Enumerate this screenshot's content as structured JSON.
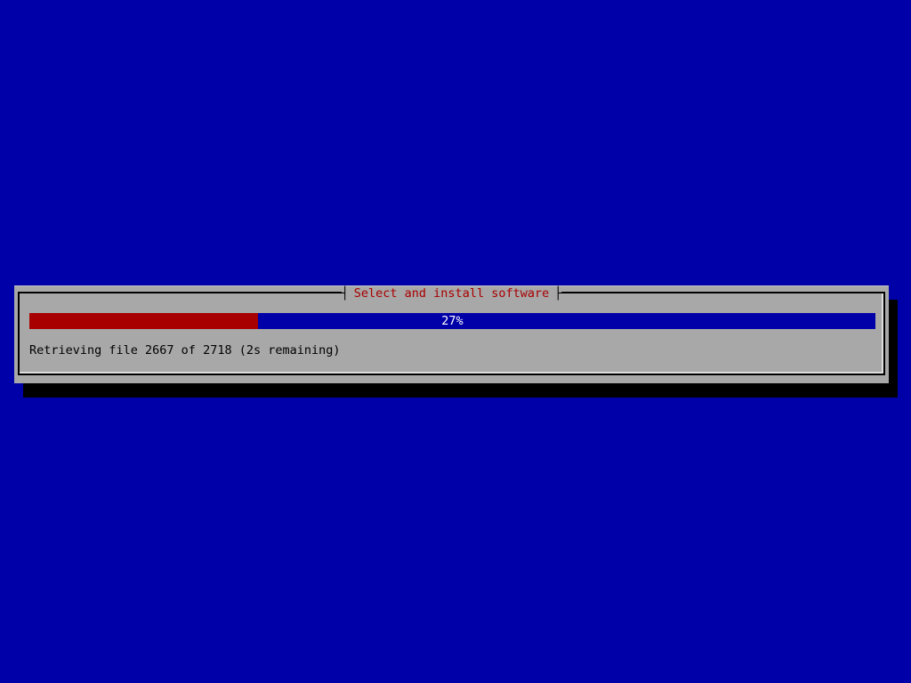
{
  "screen": {
    "background_color": "#0000A8"
  },
  "dialog": {
    "title": "Select and install software",
    "title_color": "#A80000",
    "background_color": "#A8A8A8",
    "border": {
      "left_tick": "┤",
      "right_tick": "├"
    },
    "progress": {
      "percent": 27,
      "label": "27%",
      "fill_style": "width: 27%",
      "filled_color": "#A80000",
      "unfilled_color": "#0000A8",
      "label_color": "#FFFFFF"
    },
    "status_text": "Retrieving file 2667 of 2718 (2s remaining)"
  }
}
